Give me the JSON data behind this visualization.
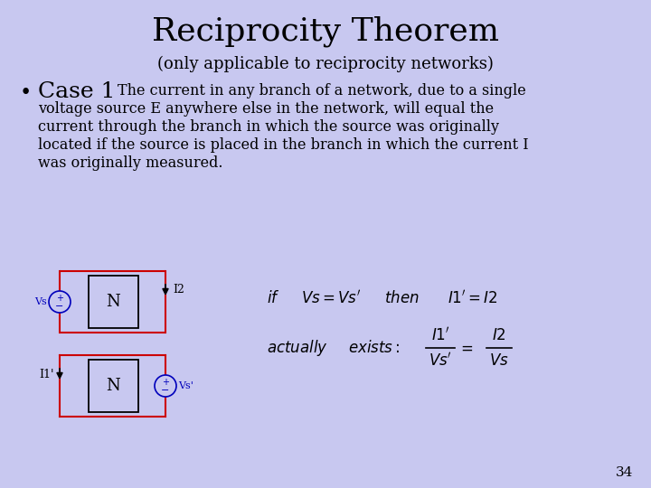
{
  "background_color": "#c8c8f0",
  "title": "Reciprocity Theorem",
  "subtitle": "(only applicable to reciprocity networks)",
  "title_fontsize": 26,
  "subtitle_fontsize": 13,
  "body_lines": [
    "The current in any branch of a network, due to a single",
    "voltage source E anywhere else in the network, will equal the",
    "current through the branch in which the source was originally",
    "located if the source is placed in the branch in which the current I",
    "was originally measured."
  ],
  "case_label": "Case 1",
  "page_number": "34",
  "text_color": "#000000",
  "circuit_color_red": "#cc0000",
  "circuit_color_blue": "#0000bb",
  "circuit_color_black": "#000000",
  "bullet": "•"
}
